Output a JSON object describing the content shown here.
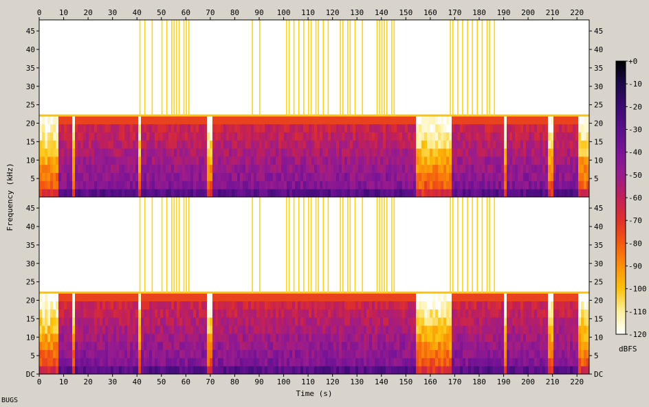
{
  "chart_data": {
    "type": "heatmap",
    "subtype": "spectrogram",
    "channels": 2,
    "xlabel": "Time (s)",
    "ylabel": "Frequency (kHz)",
    "xlim": [
      0,
      225
    ],
    "ylim": [
      0,
      48
    ],
    "x_ticks": [
      0,
      10,
      20,
      30,
      40,
      50,
      60,
      70,
      80,
      90,
      100,
      110,
      120,
      130,
      140,
      150,
      160,
      170,
      180,
      190,
      200,
      210,
      220
    ],
    "y_ticks_left": [
      "DC",
      "5",
      "10",
      "15",
      "20",
      "25",
      "30",
      "35",
      "40",
      "45"
    ],
    "y_ticks_right": [
      "DC",
      "5",
      "10",
      "15",
      "20",
      "25",
      "30",
      "35",
      "40",
      "45"
    ],
    "spectral_cutoff_khz": 22,
    "colorbar": {
      "label": "dBFS",
      "ticks": [
        "+0",
        "-10",
        "-20",
        "-30",
        "-40",
        "-50",
        "-60",
        "-70",
        "-80",
        "-90",
        "-100",
        "-110",
        "-120"
      ],
      "colors": [
        "#000000",
        "#1c0a4a",
        "#3a0a70",
        "#5a0f8a",
        "#7a1496",
        "#9a1c8c",
        "#c0205a",
        "#e0302a",
        "#f35a10",
        "#fb9008",
        "#fdc20a",
        "#fff0a0",
        "#ffffff"
      ]
    },
    "loud_segments_s": [
      [
        7,
        13
      ],
      [
        14,
        40
      ],
      [
        41,
        68
      ],
      [
        70,
        154
      ],
      [
        168,
        189
      ],
      [
        191,
        207
      ],
      [
        210,
        220
      ]
    ],
    "quiet_segments_s": [
      [
        0,
        7
      ],
      [
        154,
        168
      ],
      [
        220,
        225
      ]
    ],
    "wideband_transients_s": [
      41,
      43,
      46,
      50,
      52,
      54,
      55,
      56,
      57,
      59,
      60,
      61,
      87,
      90,
      101,
      102,
      104,
      106,
      108,
      110,
      111,
      113,
      114,
      116,
      118,
      123,
      124,
      126,
      127,
      129,
      132,
      138,
      139,
      140,
      141,
      142,
      144,
      145,
      168,
      169,
      171,
      173,
      175,
      177,
      179,
      181,
      183,
      184,
      186
    ]
  },
  "footer": {
    "caption": "BUGS"
  }
}
